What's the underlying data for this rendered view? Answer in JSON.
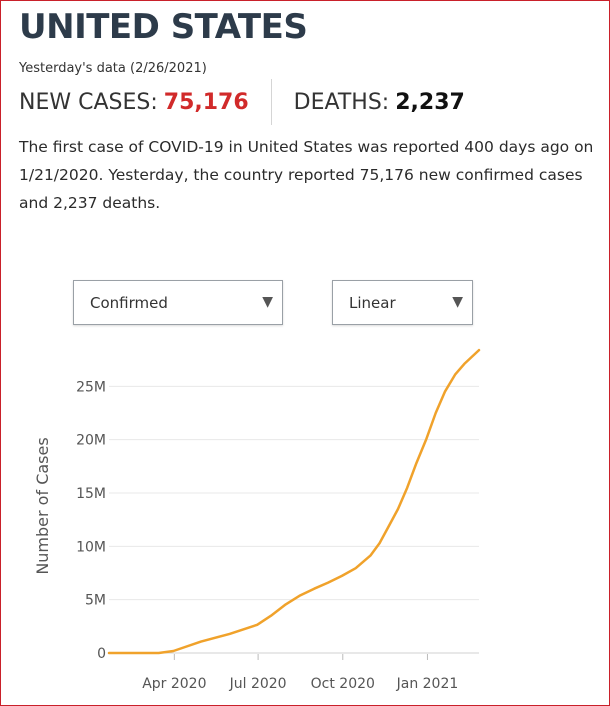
{
  "header": {
    "country": "UNITED STATES",
    "yesterday_label": "Yesterday's data (2/26/2021)"
  },
  "stats": {
    "cases_label": "NEW CASES:",
    "cases_value": "75,176",
    "deaths_label": "DEATHS:",
    "deaths_value": "2,237",
    "cases_color": "#d12a2a"
  },
  "summary": {
    "p1": "The first case of ",
    "p2": "COVID-19",
    "p3": " in United States was reported ",
    "p4": "400",
    "p5": " days ago on 1/21/2020. Yesterday, the country reported 75,176 new confirmed cases and 2,237 deaths."
  },
  "controls": {
    "metric_selected": "Confirmed",
    "scale_selected": "Linear"
  },
  "chart_data": {
    "type": "line",
    "xlabel": "",
    "ylabel": "Number of Cases",
    "x_tick_labels": [
      "Apr 2020",
      "Jul 2020",
      "Oct 2020",
      "Jan 2021"
    ],
    "x_ticks": [
      "2020-04-01",
      "2020-07-01",
      "2020-10-01",
      "2021-01-01"
    ],
    "y_ticks": [
      0,
      5000000,
      10000000,
      15000000,
      20000000,
      25000000
    ],
    "y_tick_labels": [
      "0",
      "5M",
      "10M",
      "15M",
      "20M",
      "25M"
    ],
    "ylim": [
      0,
      28500000
    ],
    "xlim": [
      "2020-01-21",
      "2021-02-26"
    ],
    "grid": true,
    "line_color": "#f0a22b",
    "series": [
      {
        "name": "",
        "points": [
          [
            "2020-01-21",
            0
          ],
          [
            "2020-03-15",
            3000
          ],
          [
            "2020-03-31",
            190000
          ],
          [
            "2020-04-30",
            1070000
          ],
          [
            "2020-05-31",
            1790000
          ],
          [
            "2020-06-30",
            2640000
          ],
          [
            "2020-07-15",
            3500000
          ],
          [
            "2020-07-31",
            4560000
          ],
          [
            "2020-08-15",
            5360000
          ],
          [
            "2020-08-31",
            6030000
          ],
          [
            "2020-09-15",
            6600000
          ],
          [
            "2020-09-30",
            7230000
          ],
          [
            "2020-10-15",
            7950000
          ],
          [
            "2020-10-31",
            9130000
          ],
          [
            "2020-11-10",
            10300000
          ],
          [
            "2020-11-20",
            11900000
          ],
          [
            "2020-11-30",
            13500000
          ],
          [
            "2020-12-10",
            15500000
          ],
          [
            "2020-12-20",
            17800000
          ],
          [
            "2020-12-31",
            20100000
          ],
          [
            "2021-01-10",
            22500000
          ],
          [
            "2021-01-20",
            24500000
          ],
          [
            "2021-01-31",
            26100000
          ],
          [
            "2021-02-10",
            27100000
          ],
          [
            "2021-02-26",
            28400000
          ]
        ]
      }
    ]
  }
}
